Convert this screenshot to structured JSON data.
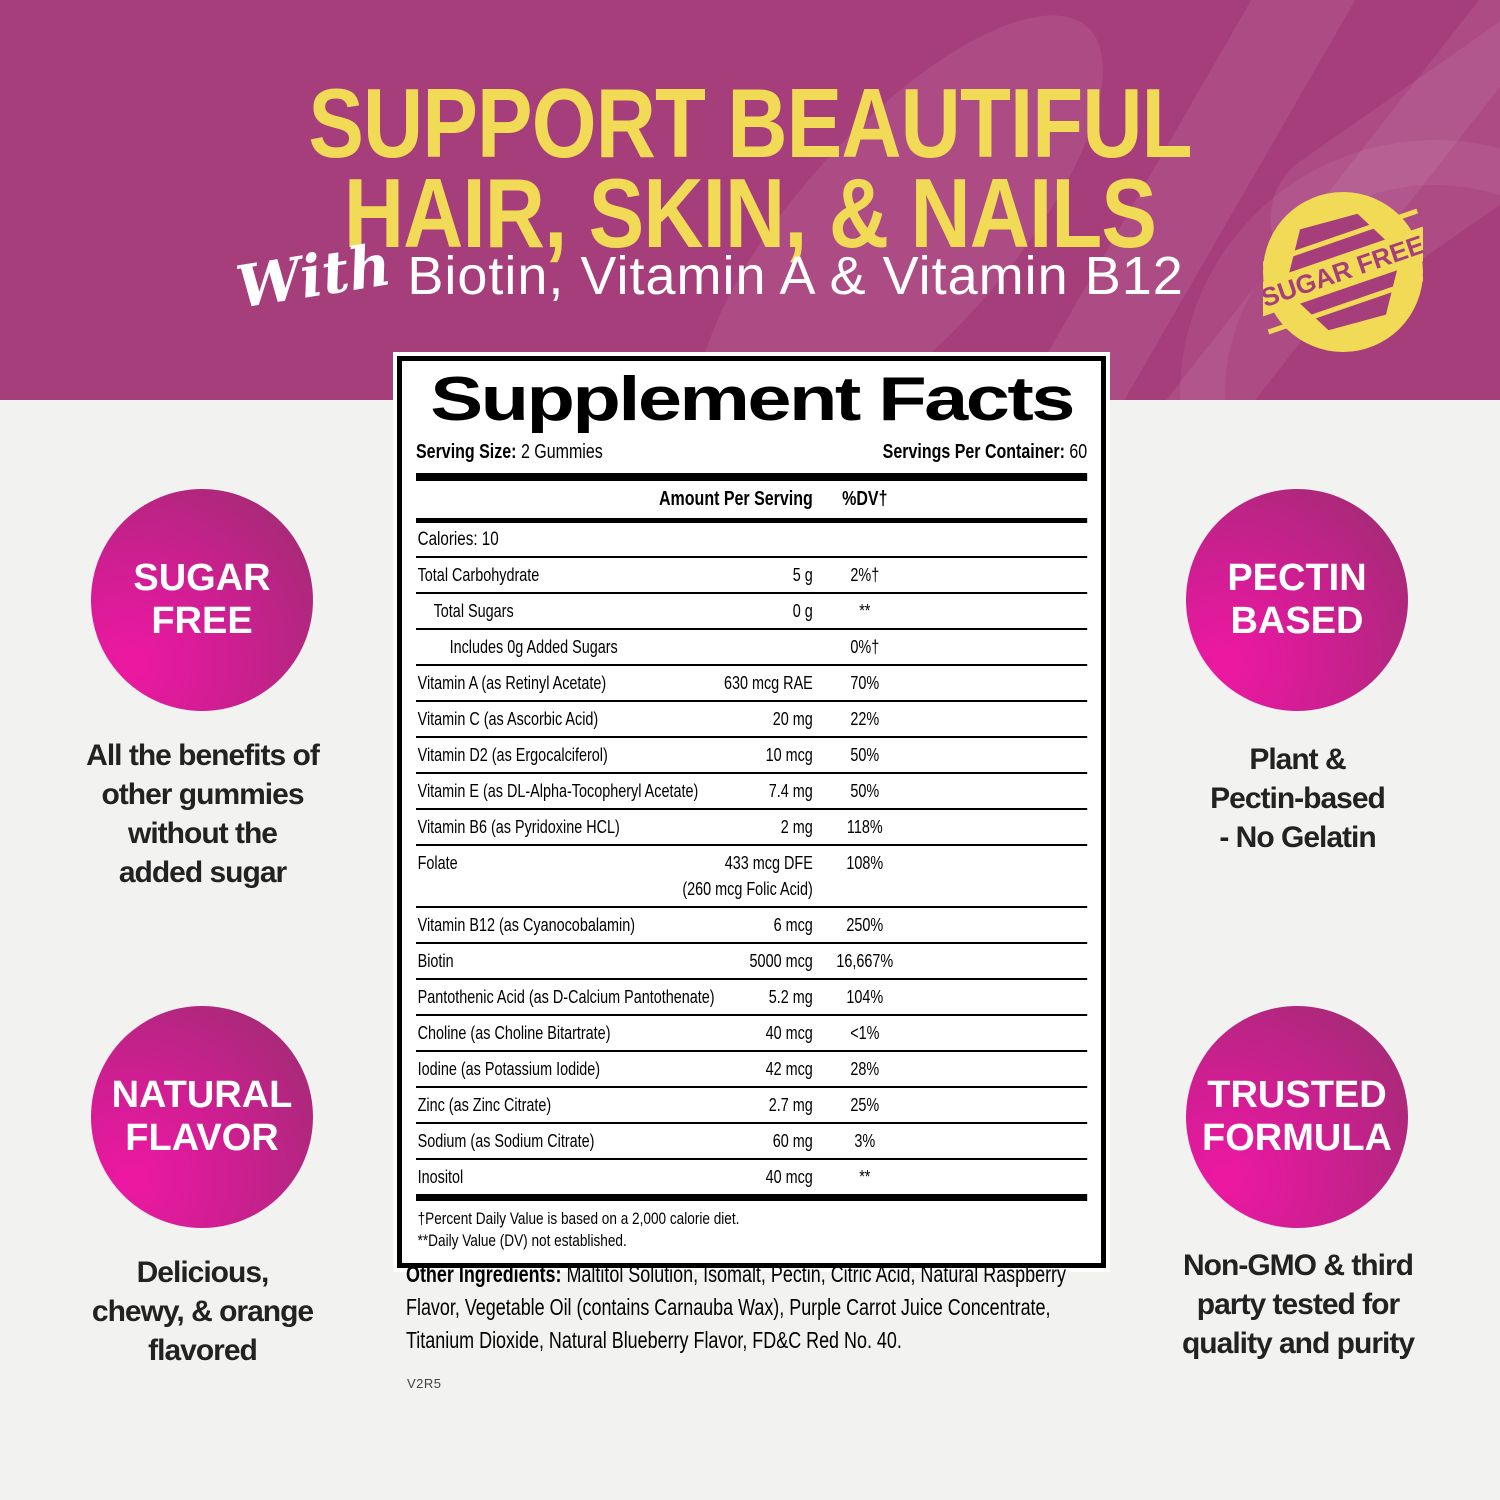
{
  "colors": {
    "banner_magenta": "#a73e7c",
    "accent_yellow": "#f1da55",
    "circle_pink_bright": "#ee18a2",
    "circle_pink_dark": "#9a2e6e",
    "background": "#f2f2f0"
  },
  "banner": {
    "title_line1": "SUPPORT BEAUTIFUL",
    "title_line2": "HAIR, SKIN, & NAILS",
    "subtitle_script": "With",
    "subtitle": "Biotin, Vitamin A & Vitamin B12",
    "badge_text": "SUGAR FREE"
  },
  "features": [
    {
      "circle": "SUGAR FREE",
      "caption": "All the benefits of\nother gummies\nwithout the\nadded sugar"
    },
    {
      "circle": "PECTIN BASED",
      "caption": "Plant &\nPectin-based\n- No Gelatin"
    },
    {
      "circle": "NATURAL FLAVOR",
      "caption": "Delicious,\nchewy, & orange\nflavored"
    },
    {
      "circle": "TRUSTED FORMULA",
      "caption": "Non-GMO & third\nparty tested for\nquality and purity"
    }
  ],
  "supplement_facts": {
    "title": "Supplement Facts",
    "serving_size_label": "Serving Size:",
    "serving_size_value": "2 Gummies",
    "servings_label": "Servings Per Container:",
    "servings_value": "60",
    "col_amount": "Amount Per Serving",
    "col_dv": "%DV†",
    "calories": "Calories: 10",
    "rows": [
      {
        "name": "Total Carbohydrate",
        "amount": "5 g",
        "dv": "2%†",
        "indent": 0
      },
      {
        "name": "Total Sugars",
        "amount": "0 g",
        "dv": "**",
        "indent": 1
      },
      {
        "name": "Includes 0g Added Sugars",
        "amount": "",
        "dv": "0%†",
        "indent": 2
      },
      {
        "name": "Vitamin A (as Retinyl Acetate)",
        "amount": "630 mcg RAE",
        "dv": "70%",
        "indent": 0
      },
      {
        "name": "Vitamin C (as Ascorbic Acid)",
        "amount": "20 mg",
        "dv": "22%",
        "indent": 0
      },
      {
        "name": "Vitamin D2 (as Ergocalciferol)",
        "amount": "10 mcg",
        "dv": "50%",
        "indent": 0
      },
      {
        "name": "Vitamin E (as DL-Alpha-Tocopheryl Acetate)",
        "amount": "7.4 mg",
        "dv": "50%",
        "indent": 0
      },
      {
        "name": "Vitamin B6 (as Pyridoxine HCL)",
        "amount": "2 mg",
        "dv": "118%",
        "indent": 0
      },
      {
        "name": "Folate",
        "amount": "433 mcg DFE",
        "amount2": "(260 mcg Folic Acid)",
        "dv": "108%",
        "indent": 0
      },
      {
        "name": "Vitamin B12 (as Cyanocobalamin)",
        "amount": "6 mcg",
        "dv": "250%",
        "indent": 0
      },
      {
        "name": "Biotin",
        "amount": "5000 mcg",
        "dv": "16,667%",
        "indent": 0
      },
      {
        "name": "Pantothenic Acid (as D-Calcium Pantothenate)",
        "amount": "5.2 mg",
        "dv": "104%",
        "indent": 0
      },
      {
        "name": "Choline (as Choline Bitartrate)",
        "amount": "40 mcg",
        "dv": "<1%",
        "indent": 0
      },
      {
        "name": "Iodine (as Potassium Iodide)",
        "amount": "42 mcg",
        "dv": "28%",
        "indent": 0
      },
      {
        "name": "Zinc (as Zinc Citrate)",
        "amount": "2.7 mg",
        "dv": "25%",
        "indent": 0
      },
      {
        "name": "Sodium (as Sodium Citrate)",
        "amount": "60 mg",
        "dv": "3%",
        "indent": 0
      },
      {
        "name": "Inositol",
        "amount": "40 mcg",
        "dv": "**",
        "indent": 0
      }
    ],
    "footnotes": [
      "†Percent Daily Value is based on a 2,000 calorie diet.",
      "**Daily Value (DV) not established."
    ]
  },
  "other_ingredients_label": "Other Ingredients:",
  "other_ingredients": "Maltitol Solution, Isomalt, Pectin, Citric Acid, Natural Raspberry Flavor, Vegetable Oil (contains Carnauba Wax), Purple Carrot Juice Concentrate, Titanium Dioxide, Natural Blueberry Flavor, FD&C Red No. 40.",
  "version_code": "V2R5"
}
